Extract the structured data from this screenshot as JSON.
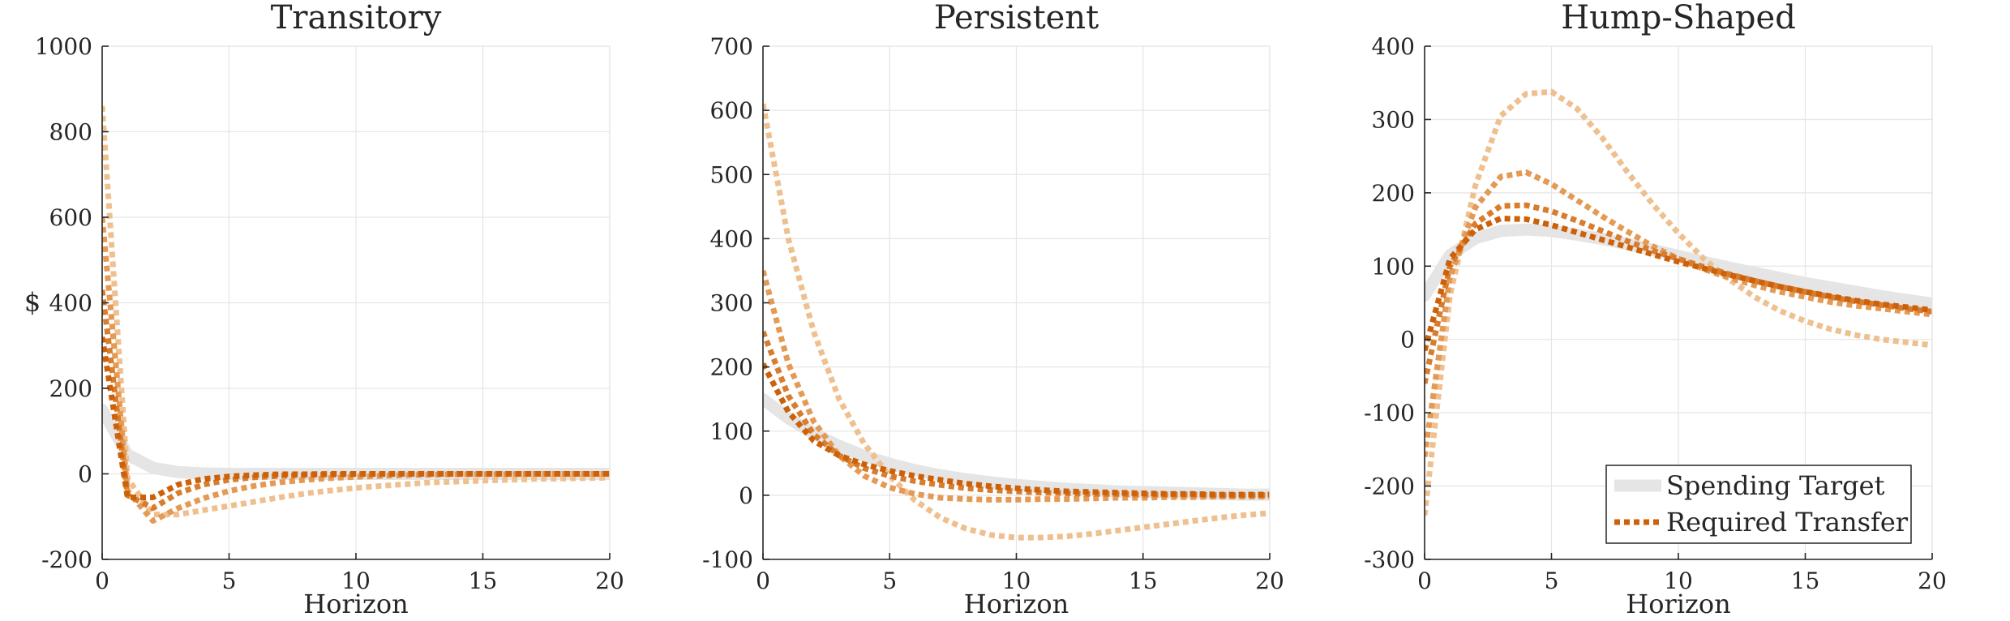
{
  "colors": {
    "target": "#e5e5e5",
    "transfer": [
      "#efc08f",
      "#e49a54",
      "#d87d2e",
      "#cd6109"
    ],
    "grid": "#e6e6e6",
    "axis": "#262626"
  },
  "legend": {
    "target_label": "Spending Target",
    "transfer_label": "Required Transfer",
    "position": "bottom-right"
  },
  "chart_data": [
    {
      "type": "line",
      "title": "Transitory",
      "xlabel": "Horizon",
      "ylabel": "$",
      "xlim": [
        0,
        20
      ],
      "ylim": [
        -200,
        1000
      ],
      "xticks": [
        0,
        5,
        10,
        15,
        20
      ],
      "yticks": [
        -200,
        0,
        200,
        400,
        600,
        800,
        1000
      ],
      "grid": true,
      "x": [
        0,
        1,
        2,
        3,
        4,
        5,
        6,
        7,
        8,
        9,
        10,
        11,
        12,
        13,
        14,
        15,
        16,
        17,
        18,
        19,
        20
      ],
      "series": [
        {
          "name": "Spending Target",
          "values": [
            150,
            45,
            14,
            4,
            1,
            0,
            0,
            0,
            0,
            0,
            0,
            0,
            0,
            0,
            0,
            0,
            0,
            0,
            0,
            0,
            0
          ]
        },
        {
          "name": "Required Transfer",
          "values": [
            860,
            -10,
            -95,
            -95,
            -85,
            -75,
            -65,
            -55,
            -46,
            -39,
            -33,
            -28,
            -24,
            -20,
            -18,
            -16,
            -14,
            -12,
            -11,
            -10,
            -9
          ]
        },
        {
          "name": "Required Transfer",
          "values": [
            600,
            -40,
            -110,
            -80,
            -57,
            -40,
            -28,
            -20,
            -14,
            -10,
            -7,
            -5,
            -3,
            -2,
            -1,
            -1,
            -1,
            0,
            0,
            0,
            0
          ]
        },
        {
          "name": "Required Transfer",
          "values": [
            430,
            -50,
            -80,
            -45,
            -25,
            -14,
            -8,
            -5,
            -3,
            -2,
            -1,
            -1,
            0,
            0,
            0,
            0,
            0,
            0,
            0,
            0,
            0
          ]
        },
        {
          "name": "Required Transfer",
          "values": [
            320,
            -55,
            -55,
            -25,
            -12,
            -6,
            -3,
            -1,
            -1,
            0,
            0,
            0,
            0,
            0,
            0,
            0,
            0,
            0,
            0,
            0,
            0
          ]
        }
      ]
    },
    {
      "type": "line",
      "title": "Persistent",
      "xlabel": "Horizon",
      "ylabel": "",
      "xlim": [
        0,
        20
      ],
      "ylim": [
        -100,
        700
      ],
      "xticks": [
        0,
        5,
        10,
        15,
        20
      ],
      "yticks": [
        -100,
        0,
        100,
        200,
        300,
        400,
        500,
        600,
        700
      ],
      "grid": true,
      "x": [
        0,
        1,
        2,
        3,
        4,
        5,
        6,
        7,
        8,
        9,
        10,
        11,
        12,
        13,
        14,
        15,
        16,
        17,
        18,
        19,
        20
      ],
      "series": [
        {
          "name": "Spending Target",
          "values": [
            150,
            120,
            96,
            77,
            61,
            49,
            39,
            31,
            25,
            20,
            16,
            13,
            10,
            8,
            6,
            5,
            4,
            3,
            2,
            1,
            1
          ]
        },
        {
          "name": "Required Transfer",
          "values": [
            610,
            400,
            255,
            150,
            80,
            30,
            -8,
            -35,
            -52,
            -62,
            -66,
            -66,
            -64,
            -60,
            -55,
            -50,
            -45,
            -40,
            -35,
            -31,
            -28
          ]
        },
        {
          "name": "Required Transfer",
          "values": [
            350,
            205,
            115,
            62,
            30,
            12,
            2,
            -4,
            -6,
            -7,
            -7,
            -6,
            -6,
            -5,
            -4,
            -4,
            -3,
            -3,
            -2,
            -2,
            -2
          ]
        },
        {
          "name": "Required Transfer",
          "values": [
            255,
            155,
            95,
            62,
            42,
            30,
            22,
            16,
            11,
            8,
            6,
            4,
            3,
            2,
            2,
            1,
            1,
            1,
            0,
            0,
            0
          ]
        },
        {
          "name": "Required Transfer",
          "values": [
            205,
            130,
            85,
            62,
            48,
            38,
            30,
            24,
            18,
            14,
            11,
            8,
            6,
            5,
            4,
            3,
            2,
            2,
            1,
            1,
            1
          ]
        }
      ]
    },
    {
      "type": "line",
      "title": "Hump-Shaped",
      "xlabel": "Horizon",
      "ylabel": "",
      "xlim": [
        0,
        20
      ],
      "ylim": [
        -300,
        400
      ],
      "xticks": [
        0,
        5,
        10,
        15,
        20
      ],
      "yticks": [
        -300,
        -200,
        -100,
        0,
        100,
        200,
        300,
        400
      ],
      "grid": true,
      "x": [
        0,
        1,
        2,
        3,
        4,
        5,
        6,
        7,
        8,
        9,
        10,
        11,
        12,
        13,
        14,
        15,
        16,
        17,
        18,
        19,
        20
      ],
      "series": [
        {
          "name": "Spending Target",
          "values": [
            60,
            115,
            138,
            148,
            150,
            148,
            143,
            137,
            130,
            122,
            114,
            106,
            98,
            91,
            84,
            77,
            71,
            65,
            59,
            54,
            49
          ]
        },
        {
          "name": "Required Transfer",
          "values": [
            -240,
            60,
            210,
            305,
            335,
            338,
            315,
            275,
            228,
            184,
            145,
            110,
            82,
            58,
            39,
            25,
            14,
            6,
            0,
            -4,
            -8
          ]
        },
        {
          "name": "Required Transfer",
          "values": [
            -160,
            85,
            180,
            222,
            228,
            212,
            190,
            168,
            147,
            127,
            110,
            96,
            84,
            74,
            65,
            58,
            51,
            46,
            42,
            38,
            34
          ]
        },
        {
          "name": "Required Transfer",
          "values": [
            -60,
            100,
            158,
            182,
            183,
            175,
            162,
            148,
            134,
            121,
            110,
            99,
            89,
            80,
            72,
            65,
            58,
            52,
            47,
            42,
            38
          ]
        },
        {
          "name": "Required Transfer",
          "values": [
            -15,
            110,
            150,
            165,
            164,
            156,
            146,
            136,
            126,
            116,
            106,
            97,
            88,
            80,
            72,
            65,
            59,
            53,
            48,
            44,
            40
          ]
        }
      ]
    }
  ]
}
